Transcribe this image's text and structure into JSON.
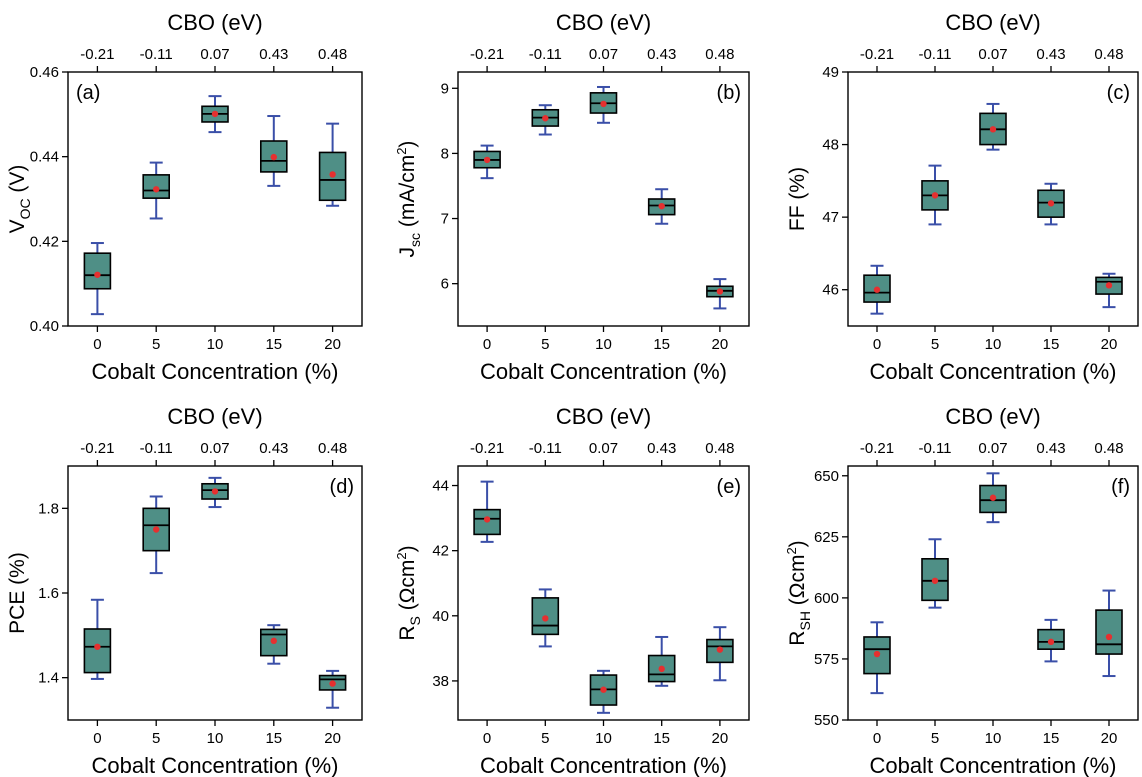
{
  "colors": {
    "box_fill": "#4f8f86",
    "box_edge": "#000000",
    "whisker": "#3a4fa8",
    "mean_dot": "#e53030",
    "axis": "#000000"
  },
  "chart_data": [
    {
      "type": "box",
      "panel_label": "(a)",
      "label_side": "left",
      "ylabel": {
        "main": "V",
        "sub": "OC",
        "sup": "",
        "rest": " (V)"
      },
      "xlabel": "Cobalt Concentration (%)",
      "top_xlabel": "CBO (eV)",
      "categories": [
        "0",
        "5",
        "10",
        "15",
        "20"
      ],
      "top_categories": [
        "-0.21",
        "-0.11",
        "0.07",
        "0.43",
        "0.48"
      ],
      "ylim": [
        0.4,
        0.46
      ],
      "yticks": [
        0.4,
        0.42,
        0.44,
        0.46
      ],
      "ytick_labels": [
        "0.40",
        "0.42",
        "0.44",
        "0.46"
      ],
      "boxes": [
        {
          "min": 0.4028,
          "q1": 0.4088,
          "median": 0.412,
          "q3": 0.4172,
          "max": 0.4196,
          "mean": 0.4121
        },
        {
          "min": 0.4254,
          "q1": 0.4302,
          "median": 0.432,
          "q3": 0.4357,
          "max": 0.4386,
          "mean": 0.4323
        },
        {
          "min": 0.4458,
          "q1": 0.4482,
          "median": 0.4501,
          "q3": 0.4519,
          "max": 0.4543,
          "mean": 0.4501
        },
        {
          "min": 0.4331,
          "q1": 0.4364,
          "median": 0.439,
          "q3": 0.4437,
          "max": 0.4496,
          "mean": 0.4399
        },
        {
          "min": 0.4284,
          "q1": 0.4297,
          "median": 0.4345,
          "q3": 0.441,
          "max": 0.4478,
          "mean": 0.4358
        }
      ]
    },
    {
      "type": "box",
      "panel_label": "(b)",
      "label_side": "right",
      "ylabel": {
        "main": "J",
        "sub": "sc",
        "sup": "2",
        "rest": " (mA/cm",
        "close": ")"
      },
      "xlabel": "Cobalt Concentration (%)",
      "top_xlabel": "CBO (eV)",
      "categories": [
        "0",
        "5",
        "10",
        "15",
        "20"
      ],
      "top_categories": [
        "-0.21",
        "-0.11",
        "0.07",
        "0.43",
        "0.48"
      ],
      "ylim": [
        5.35,
        9.25
      ],
      "yticks": [
        6,
        7,
        8,
        9
      ],
      "ytick_labels": [
        "6",
        "7",
        "8",
        "9"
      ],
      "boxes": [
        {
          "min": 7.62,
          "q1": 7.78,
          "median": 7.9,
          "q3": 8.03,
          "max": 8.12,
          "mean": 7.9
        },
        {
          "min": 8.29,
          "q1": 8.42,
          "median": 8.55,
          "q3": 8.67,
          "max": 8.74,
          "mean": 8.54
        },
        {
          "min": 8.47,
          "q1": 8.62,
          "median": 8.77,
          "q3": 8.93,
          "max": 9.02,
          "mean": 8.76
        },
        {
          "min": 6.92,
          "q1": 7.06,
          "median": 7.2,
          "q3": 7.3,
          "max": 7.45,
          "mean": 7.19
        },
        {
          "min": 5.62,
          "q1": 5.8,
          "median": 5.89,
          "q3": 5.96,
          "max": 6.07,
          "mean": 5.88
        }
      ]
    },
    {
      "type": "box",
      "panel_label": "(c)",
      "label_side": "right",
      "ylabel": {
        "main": "FF (%)",
        "sub": "",
        "sup": "",
        "rest": ""
      },
      "xlabel": "Cobalt Concentration (%)",
      "top_xlabel": "CBO (eV)",
      "categories": [
        "0",
        "5",
        "10",
        "15",
        "20"
      ],
      "top_categories": [
        "-0.21",
        "-0.11",
        "0.07",
        "0.43",
        "0.48"
      ],
      "ylim": [
        45.5,
        49.0
      ],
      "yticks": [
        46,
        47,
        48,
        49
      ],
      "ytick_labels": [
        "46",
        "47",
        "48",
        "49"
      ],
      "boxes": [
        {
          "min": 45.67,
          "q1": 45.83,
          "median": 45.96,
          "q3": 46.2,
          "max": 46.33,
          "mean": 46.0
        },
        {
          "min": 46.9,
          "q1": 47.1,
          "median": 47.3,
          "q3": 47.5,
          "max": 47.71,
          "mean": 47.3
        },
        {
          "min": 47.93,
          "q1": 48.0,
          "median": 48.21,
          "q3": 48.43,
          "max": 48.56,
          "mean": 48.21
        },
        {
          "min": 46.9,
          "q1": 47.0,
          "median": 47.2,
          "q3": 47.37,
          "max": 47.46,
          "mean": 47.19
        },
        {
          "min": 45.76,
          "q1": 45.94,
          "median": 46.11,
          "q3": 46.17,
          "max": 46.22,
          "mean": 46.06
        }
      ]
    },
    {
      "type": "box",
      "panel_label": "(d)",
      "label_side": "right",
      "ylabel": {
        "main": "PCE (%)",
        "sub": "",
        "sup": "",
        "rest": ""
      },
      "xlabel": "Cobalt Concentration (%)",
      "top_xlabel": "CBO (eV)",
      "categories": [
        "0",
        "5",
        "10",
        "15",
        "20"
      ],
      "top_categories": [
        "-0.21",
        "-0.11",
        "0.07",
        "0.43",
        "0.48"
      ],
      "ylim": [
        1.3,
        1.9
      ],
      "yticks": [
        1.4,
        1.6,
        1.8
      ],
      "ytick_labels": [
        "1.4",
        "1.6",
        "1.8"
      ],
      "boxes": [
        {
          "min": 1.397,
          "q1": 1.412,
          "median": 1.473,
          "q3": 1.515,
          "max": 1.584,
          "mean": 1.473
        },
        {
          "min": 1.647,
          "q1": 1.7,
          "median": 1.76,
          "q3": 1.8,
          "max": 1.828,
          "mean": 1.75
        },
        {
          "min": 1.803,
          "q1": 1.822,
          "median": 1.843,
          "q3": 1.858,
          "max": 1.872,
          "mean": 1.84
        },
        {
          "min": 1.433,
          "q1": 1.452,
          "median": 1.502,
          "q3": 1.514,
          "max": 1.524,
          "mean": 1.487
        },
        {
          "min": 1.329,
          "q1": 1.371,
          "median": 1.396,
          "q3": 1.405,
          "max": 1.416,
          "mean": 1.386
        }
      ]
    },
    {
      "type": "box",
      "panel_label": "(e)",
      "label_side": "right",
      "ylabel": {
        "main": "R",
        "sub": "S",
        "sup": "2",
        "rest": " (Ωcm",
        "close": ")"
      },
      "xlabel": "Cobalt Concentration (%)",
      "top_xlabel": "CBO (eV)",
      "categories": [
        "0",
        "5",
        "10",
        "15",
        "20"
      ],
      "top_categories": [
        "-0.21",
        "-0.11",
        "0.07",
        "0.43",
        "0.48"
      ],
      "ylim": [
        36.8,
        44.6
      ],
      "yticks": [
        38,
        40,
        42,
        44
      ],
      "ytick_labels": [
        "38",
        "40",
        "42",
        "44"
      ],
      "boxes": [
        {
          "min": 42.27,
          "q1": 42.5,
          "median": 42.98,
          "q3": 43.26,
          "max": 44.12,
          "mean": 42.96
        },
        {
          "min": 39.06,
          "q1": 39.43,
          "median": 39.7,
          "q3": 40.55,
          "max": 40.81,
          "mean": 39.92
        },
        {
          "min": 37.02,
          "q1": 37.26,
          "median": 37.74,
          "q3": 38.18,
          "max": 38.31,
          "mean": 37.73
        },
        {
          "min": 37.85,
          "q1": 37.98,
          "median": 38.2,
          "q3": 38.78,
          "max": 39.35,
          "mean": 38.37
        },
        {
          "min": 38.02,
          "q1": 38.57,
          "median": 39.06,
          "q3": 39.27,
          "max": 39.65,
          "mean": 38.96
        }
      ]
    },
    {
      "type": "box",
      "panel_label": "(f)",
      "label_side": "right",
      "ylabel": {
        "main": "R",
        "sub": "SH",
        "sup": "2",
        "rest": " (Ωcm",
        "close": ")"
      },
      "xlabel": "Cobalt Concentration (%)",
      "top_xlabel": "CBO (eV)",
      "categories": [
        "0",
        "5",
        "10",
        "15",
        "20"
      ],
      "top_categories": [
        "-0.21",
        "-0.11",
        "0.07",
        "0.43",
        "0.48"
      ],
      "ylim": [
        550,
        654
      ],
      "yticks": [
        550,
        575,
        600,
        625,
        650
      ],
      "ytick_labels": [
        "550",
        "575",
        "600",
        "625",
        "650"
      ],
      "boxes": [
        {
          "min": 561,
          "q1": 569,
          "median": 579,
          "q3": 584,
          "max": 590,
          "mean": 577
        },
        {
          "min": 596,
          "q1": 599,
          "median": 607,
          "q3": 616,
          "max": 624,
          "mean": 607
        },
        {
          "min": 631,
          "q1": 635,
          "median": 640,
          "q3": 646,
          "max": 651,
          "mean": 641
        },
        {
          "min": 574,
          "q1": 579,
          "median": 582,
          "q3": 587,
          "max": 591,
          "mean": 582
        },
        {
          "min": 568,
          "q1": 577,
          "median": 581,
          "q3": 595,
          "max": 603,
          "mean": 584
        }
      ]
    }
  ]
}
